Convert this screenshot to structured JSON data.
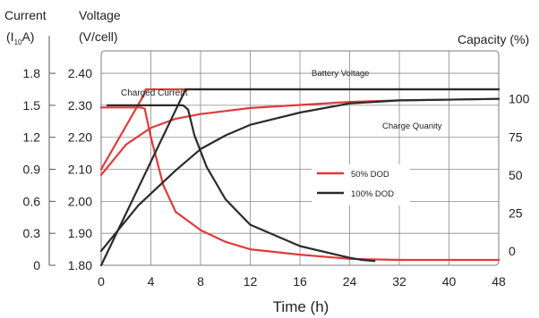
{
  "chart_data": {
    "type": "line",
    "axes": {
      "current": {
        "title_line1": "Current",
        "title_line2_main": "(I",
        "title_line2_sub": "10",
        "title_line2_end": "A)",
        "ticks": [
          "1.8",
          "1.5",
          "1.2",
          "0.9",
          "0.6",
          "0.3",
          "0"
        ],
        "range": [
          0,
          1.8
        ]
      },
      "voltage": {
        "title_line1": "Voltage",
        "title_line2": "(V/cell)",
        "ticks": [
          "2.40",
          "2.30",
          "2.20",
          "2.10",
          "2.00",
          "1.90",
          "1.80"
        ],
        "range": [
          1.8,
          2.4
        ]
      },
      "capacity": {
        "title": "Capacity (%)",
        "ticks": [
          "100",
          "75",
          "50",
          "25",
          "0"
        ],
        "range": [
          -25,
          125
        ]
      },
      "time": {
        "title": "Time (h)",
        "ticks": [
          "0",
          "4",
          "8",
          "12",
          "16",
          "24",
          "32",
          "40",
          "48"
        ],
        "note": "piecewise scale: 0-16 h linear, 16-48 h compressed (each labeled step one grid column)"
      }
    },
    "annotations": {
      "battery_voltage": "Battery Voltage",
      "charged_current": "Charged Current",
      "charge_quantity": "Charge Quanity"
    },
    "legend": {
      "position": "center-right",
      "items": [
        {
          "label": "50% DOD",
          "color": "#e03a3a"
        },
        {
          "label": "100% DOD",
          "color": "#2b2b2b"
        }
      ]
    },
    "grid": true,
    "series": [
      {
        "name": "50% DOD",
        "color": "#e03a3a",
        "curves": [
          {
            "quantity": "voltage",
            "axis": "voltage",
            "points": [
              [
                0,
                2.1
              ],
              [
                3.4,
                2.33
              ],
              [
                3.6,
                2.35
              ],
              [
                48,
                2.35
              ]
            ]
          },
          {
            "quantity": "current",
            "axis": "current",
            "points": [
              [
                0,
                1.48
              ],
              [
                3.2,
                1.48
              ],
              [
                3.5,
                1.47
              ],
              [
                4,
                1.2
              ],
              [
                5,
                0.75
              ],
              [
                6,
                0.5
              ],
              [
                8,
                0.33
              ],
              [
                10,
                0.22
              ],
              [
                12,
                0.15
              ],
              [
                16,
                0.1
              ],
              [
                24,
                0.06
              ],
              [
                32,
                0.05
              ],
              [
                48,
                0.05
              ]
            ]
          },
          {
            "quantity": "capacity",
            "axis": "capacity",
            "points": [
              [
                0,
                50
              ],
              [
                2,
                70
              ],
              [
                4,
                81
              ],
              [
                6,
                87
              ],
              [
                8,
                90
              ],
              [
                10,
                92
              ],
              [
                12,
                94
              ],
              [
                16,
                96
              ],
              [
                24,
                98
              ],
              [
                32,
                99
              ],
              [
                48,
                100
              ]
            ]
          }
        ]
      },
      {
        "name": "100% DOD",
        "color": "#2b2b2b",
        "curves": [
          {
            "quantity": "voltage",
            "axis": "voltage",
            "points": [
              [
                0,
                1.8
              ],
              [
                6.8,
                2.35
              ],
              [
                48,
                2.35
              ]
            ]
          },
          {
            "quantity": "current",
            "axis": "current",
            "points": [
              [
                0.5,
                1.5
              ],
              [
                6.6,
                1.5
              ],
              [
                7,
                1.46
              ],
              [
                7.5,
                1.22
              ],
              [
                8.5,
                0.92
              ],
              [
                10,
                0.62
              ],
              [
                12,
                0.38
              ],
              [
                16,
                0.18
              ],
              [
                24,
                0.07
              ],
              [
                26,
                0.05
              ],
              [
                28,
                0.04
              ]
            ]
          },
          {
            "quantity": "capacity",
            "axis": "capacity",
            "points": [
              [
                0,
                0
              ],
              [
                3,
                30
              ],
              [
                6,
                53
              ],
              [
                8,
                67
              ],
              [
                10,
                76
              ],
              [
                12,
                83
              ],
              [
                16,
                91
              ],
              [
                24,
                97
              ],
              [
                32,
                99
              ],
              [
                48,
                100
              ]
            ]
          }
        ]
      }
    ]
  }
}
